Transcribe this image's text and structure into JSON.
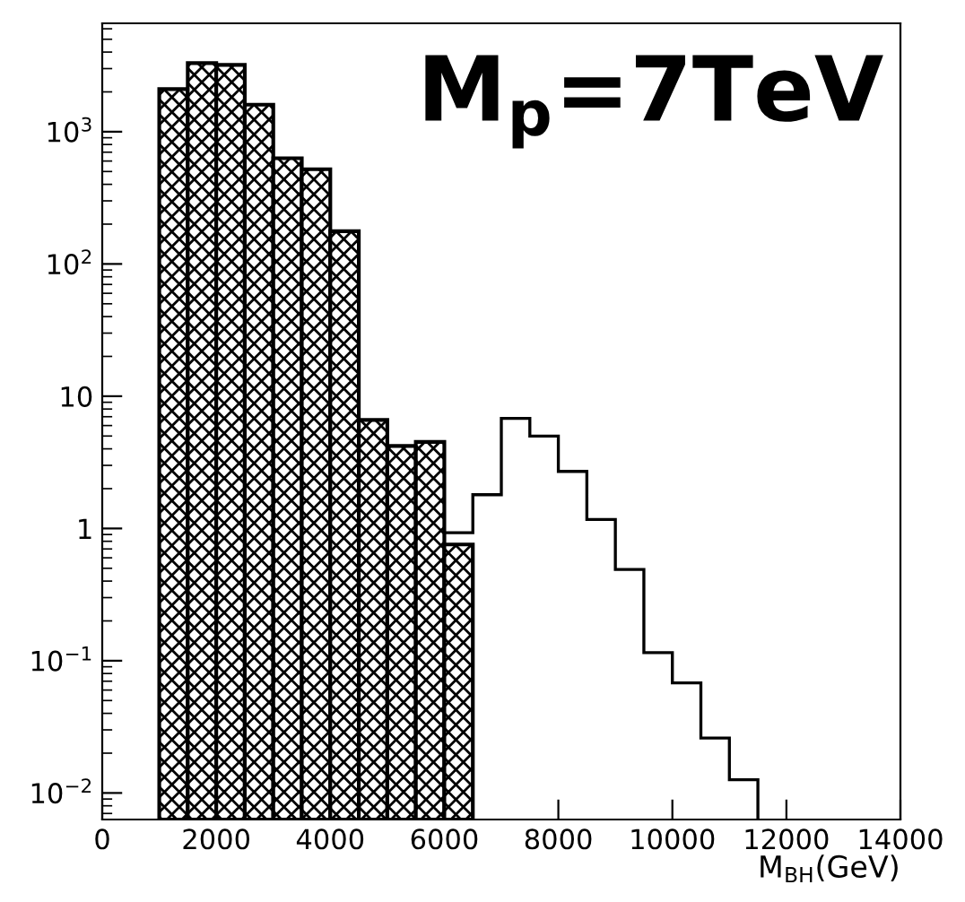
{
  "chart_data": {
    "type": "histogram",
    "xlabel": "M$_{BH}$(GeV)",
    "annotations": [
      "M$_{p}$=7TeV"
    ],
    "log": "y",
    "xlim": [
      0,
      14000
    ],
    "ylim": [
      0.0063,
      6600
    ],
    "xticks": [
      0,
      2000,
      4000,
      6000,
      8000,
      10000,
      12000,
      14000
    ],
    "yticks": [
      {
        "value": 0.01,
        "label": "10$^{−2}$"
      },
      {
        "value": 0.1,
        "label": "10$^{−1}$"
      },
      1,
      10,
      {
        "value": 100,
        "label": "10$^{2}$"
      },
      {
        "value": 1000,
        "label": "10$^{3}$"
      }
    ],
    "bins": [
      1000,
      1500,
      2000,
      2500,
      3000,
      3500,
      4000,
      4500,
      5000,
      5500,
      6000,
      6500,
      7000,
      7500,
      8000,
      8500,
      9000,
      9500,
      10000,
      10500,
      11000,
      11500
    ],
    "series": [
      {
        "color": "#000000",
        "values": [
          2100,
          3300,
          3200,
          1600,
          630,
          520,
          177,
          6.6,
          4.2,
          4.5,
          0.75,
          null,
          null,
          null,
          null,
          null,
          null,
          null,
          null,
          null,
          null
        ]
      },
      {
        "color": "#000000",
        "values": [
          null,
          null,
          null,
          null,
          null,
          null,
          null,
          null,
          null,
          null,
          0.93,
          1.8,
          6.8,
          5.0,
          2.7,
          1.17,
          0.49,
          0.115,
          0.068,
          0.026,
          0.0126
        ]
      }
    ]
  }
}
